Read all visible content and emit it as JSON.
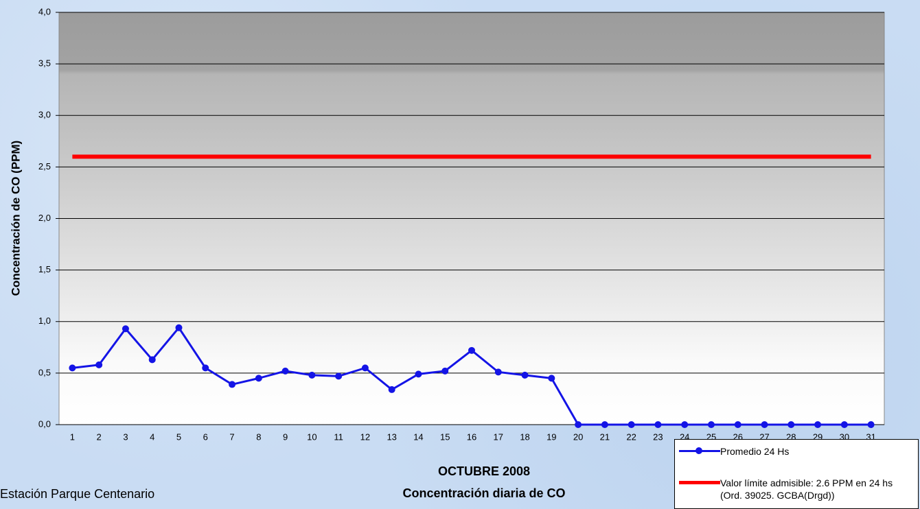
{
  "chart_data": {
    "type": "line",
    "title": "Concentración diaria de CO",
    "xlabel": "OCTUBRE 2008",
    "ylabel": "Concentración de CO (PPM)",
    "annotation": "Estación Parque Centenario",
    "categories": [
      "1",
      "2",
      "3",
      "4",
      "5",
      "6",
      "7",
      "8",
      "9",
      "10",
      "11",
      "12",
      "13",
      "14",
      "15",
      "16",
      "17",
      "18",
      "19",
      "20",
      "21",
      "22",
      "23",
      "24",
      "25",
      "26",
      "27",
      "28",
      "29",
      "30",
      "31"
    ],
    "series": [
      {
        "name": "Promedio 24 Hs",
        "color": "#1414e6",
        "marker": true,
        "values": [
          0.55,
          0.58,
          0.93,
          0.63,
          0.94,
          0.55,
          0.39,
          0.45,
          0.52,
          0.48,
          0.47,
          0.55,
          0.34,
          0.49,
          0.52,
          0.72,
          0.51,
          0.48,
          0.45,
          0,
          0,
          0,
          0,
          0,
          0,
          0,
          0,
          0,
          0,
          0,
          0
        ]
      },
      {
        "name": "Valor límite admisible: 2.6 PPM en 24 hs (Ord. 39025. GCBA(Drgd))",
        "color": "#ff0000",
        "marker": false,
        "values": [
          2.6,
          2.6,
          2.6,
          2.6,
          2.6,
          2.6,
          2.6,
          2.6,
          2.6,
          2.6,
          2.6,
          2.6,
          2.6,
          2.6,
          2.6,
          2.6,
          2.6,
          2.6,
          2.6,
          2.6,
          2.6,
          2.6,
          2.6,
          2.6,
          2.6,
          2.6,
          2.6,
          2.6,
          2.6,
          2.6,
          2.6
        ]
      }
    ],
    "ylim": [
      0,
      4
    ],
    "yticks": [
      {
        "value": 0,
        "label": "0,0"
      },
      {
        "value": 0.5,
        "label": "0,5"
      },
      {
        "value": 1,
        "label": "1,0"
      },
      {
        "value": 1.5,
        "label": "1,5"
      },
      {
        "value": 2,
        "label": "2,0"
      },
      {
        "value": 2.5,
        "label": "2,5"
      },
      {
        "value": 3,
        "label": "3,0"
      },
      {
        "value": 3.5,
        "label": "3,5"
      },
      {
        "value": 4,
        "label": "4,0"
      }
    ],
    "grid": true,
    "legend": "bottom-right"
  }
}
